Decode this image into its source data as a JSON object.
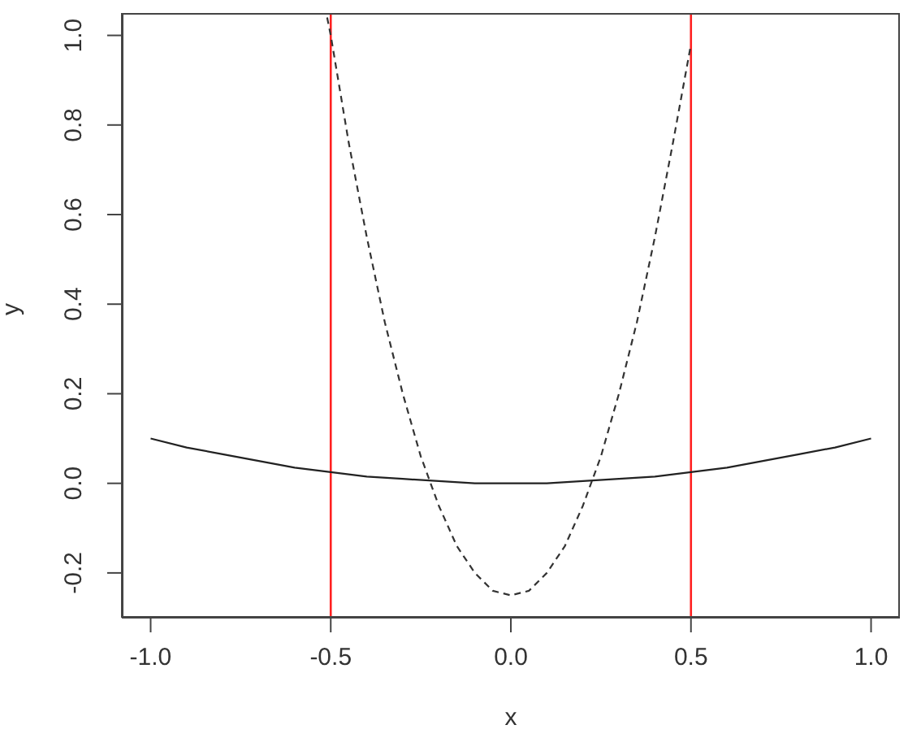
{
  "chart_data": {
    "type": "line",
    "xlabel": "x",
    "ylabel": "y",
    "xlim": [
      -1.08,
      1.08
    ],
    "ylim": [
      -0.3,
      1.05
    ],
    "xticks": [
      {
        "value": -1,
        "label": "-1.0"
      },
      -0.5,
      {
        "value": 0,
        "label": "0.0"
      },
      0.5,
      {
        "value": 1,
        "label": "1.0"
      }
    ],
    "yticks": [
      -0.2,
      {
        "value": 0,
        "label": "0.0"
      },
      0.2,
      0.4,
      0.6,
      0.8,
      {
        "value": 1,
        "label": "1.0"
      }
    ],
    "grid": false,
    "legend": false,
    "marker": "none",
    "series": [
      {
        "color": "#222222",
        "line_style": "solid",
        "x": [
          -1,
          -0.9,
          -0.8,
          -0.7,
          -0.6,
          -0.5,
          -0.4,
          -0.3,
          -0.2,
          -0.1,
          0,
          0.1,
          0.2,
          0.3,
          0.4,
          0.5,
          0.6,
          0.7,
          0.8,
          0.9,
          1
        ],
        "values": [
          0.1,
          0.08,
          0.065,
          0.05,
          0.035,
          0.025,
          0.015,
          0.01,
          0.005,
          0,
          0,
          0,
          0.005,
          0.01,
          0.015,
          0.025,
          0.035,
          0.05,
          0.065,
          0.08,
          0.1
        ]
      },
      {
        "color": "#333333",
        "line_style": "dashed",
        "x": [
          -0.51,
          -0.5,
          -0.45,
          -0.4,
          -0.35,
          -0.3,
          -0.25,
          -0.2,
          -0.15,
          -0.1,
          -0.05,
          0,
          0.05,
          0.1,
          0.15,
          0.2,
          0.25,
          0.3,
          0.35,
          0.4,
          0.45,
          0.5
        ],
        "values": [
          1.04,
          1.0,
          0.76,
          0.55,
          0.36,
          0.2,
          0.06,
          -0.05,
          -0.14,
          -0.2,
          -0.24,
          -0.25,
          -0.24,
          -0.2,
          -0.14,
          -0.05,
          0.06,
          0.2,
          0.36,
          0.55,
          0.76,
          0.98
        ]
      }
    ],
    "ref_lines": [
      {
        "axis": "x",
        "value": -0.5,
        "color": "#ff2020"
      },
      {
        "axis": "x",
        "value": 0.5,
        "color": "#ff2020"
      }
    ]
  }
}
